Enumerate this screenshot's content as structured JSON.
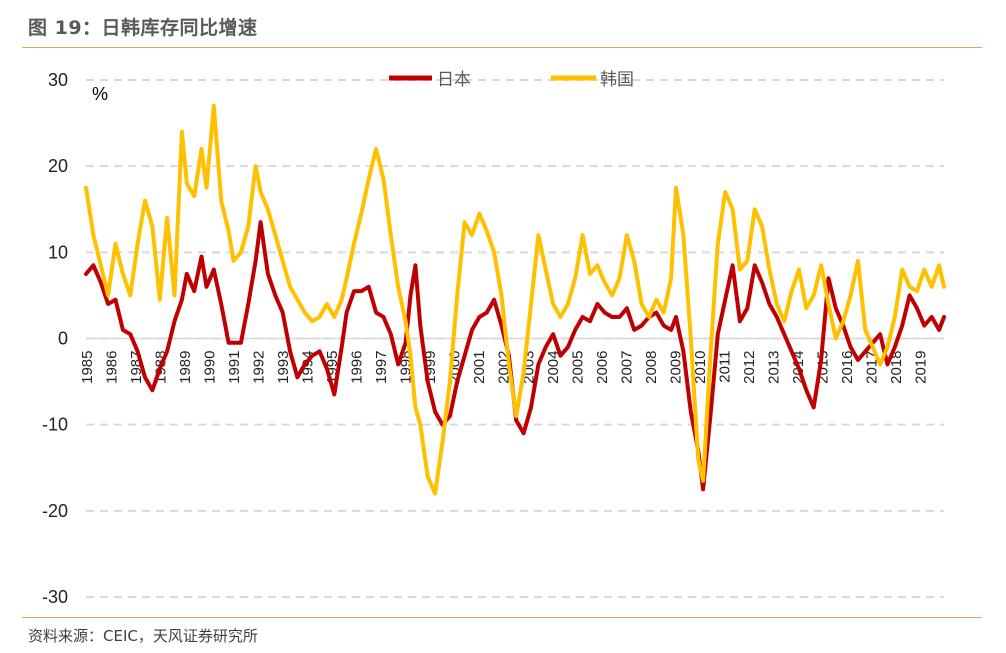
{
  "header": {
    "title": "图 19：日韩库存同比增速"
  },
  "footer": {
    "source": "资料来源：CEIC，天风证券研究所"
  },
  "chart_data": {
    "type": "line",
    "title": "图 19：日韩库存同比增速",
    "ylabel": "%",
    "ylim": [
      -30,
      30
    ],
    "yticks": [
      30,
      20,
      10,
      0,
      -10,
      -20,
      -30
    ],
    "xlim": [
      1985.0,
      2019.9
    ],
    "xtick_labels": [
      "1985",
      "1986",
      "1987",
      "1988",
      "1989",
      "1990",
      "1991",
      "1992",
      "1993",
      "1994",
      "1995",
      "1996",
      "1997",
      "1998",
      "1999",
      "2000",
      "2001",
      "2002",
      "2003",
      "2004",
      "2005",
      "2006",
      "2007",
      "2008",
      "2009",
      "2010",
      "2011",
      "2012",
      "2013",
      "2014",
      "2015",
      "2016",
      "2017",
      "2018",
      "2019"
    ],
    "grid": "horizontal dashed",
    "legend": "top-center",
    "colors": {
      "japan": "#C00000",
      "korea": "#FFC000"
    },
    "series": [
      {
        "name": "日本",
        "color": "#C00000",
        "x": [
          1985.0,
          1985.3,
          1985.6,
          1985.9,
          1986.2,
          1986.5,
          1986.8,
          1987.1,
          1987.4,
          1987.7,
          1988.0,
          1988.3,
          1988.6,
          1988.9,
          1989.1,
          1989.4,
          1989.7,
          1989.9,
          1990.2,
          1990.5,
          1990.8,
          1991.0,
          1991.3,
          1991.6,
          1991.9,
          1992.1,
          1992.4,
          1992.7,
          1993.0,
          1993.3,
          1993.6,
          1993.9,
          1994.2,
          1994.5,
          1994.8,
          1995.1,
          1995.4,
          1995.6,
          1995.9,
          1996.2,
          1996.5,
          1996.8,
          1997.1,
          1997.4,
          1997.7,
          1998.0,
          1998.2,
          1998.4,
          1998.6,
          1998.9,
          1999.2,
          1999.5,
          1999.8,
          2000.1,
          2000.4,
          2000.7,
          2001.0,
          2001.3,
          2001.6,
          2001.9,
          2002.2,
          2002.5,
          2002.8,
          2003.1,
          2003.4,
          2003.7,
          2004.0,
          2004.3,
          2004.6,
          2004.9,
          2005.2,
          2005.5,
          2005.8,
          2006.1,
          2006.4,
          2006.7,
          2007.0,
          2007.3,
          2007.6,
          2007.9,
          2008.2,
          2008.5,
          2008.8,
          2009.0,
          2009.3,
          2009.6,
          2009.9,
          2010.1,
          2010.4,
          2010.7,
          2011.0,
          2011.3,
          2011.6,
          2011.9,
          2012.2,
          2012.5,
          2012.8,
          2013.1,
          2013.4,
          2013.7,
          2014.0,
          2014.3,
          2014.6,
          2014.9,
          2015.2,
          2015.5,
          2015.8,
          2016.1,
          2016.4,
          2016.7,
          2017.0,
          2017.3,
          2017.6,
          2017.9,
          2018.2,
          2018.5,
          2018.8,
          2019.1,
          2019.4,
          2019.7,
          2019.9
        ],
        "y": [
          7.5,
          8.5,
          6.5,
          4.0,
          4.5,
          1.0,
          0.5,
          -1.5,
          -4.5,
          -6.0,
          -3.5,
          -1.5,
          2.0,
          4.5,
          7.5,
          5.5,
          9.5,
          6.0,
          8.0,
          4.0,
          -0.5,
          -0.5,
          -0.5,
          4.0,
          9.0,
          13.5,
          7.5,
          5.0,
          3.0,
          -1.5,
          -4.5,
          -3.0,
          -2.0,
          -1.5,
          -3.5,
          -6.5,
          -1.0,
          3.0,
          5.5,
          5.5,
          6.0,
          3.0,
          2.5,
          0.5,
          -3.0,
          -0.5,
          5.0,
          8.5,
          1.5,
          -5.0,
          -8.5,
          -10.0,
          -9.0,
          -5.0,
          -2.0,
          1.0,
          2.5,
          3.0,
          4.5,
          1.5,
          -2.0,
          -9.5,
          -11.0,
          -8.0,
          -3.0,
          -1.0,
          0.5,
          -2.0,
          -1.0,
          1.0,
          2.5,
          2.0,
          4.0,
          3.0,
          2.5,
          2.5,
          3.5,
          1.0,
          1.5,
          2.5,
          3.0,
          1.5,
          1.0,
          2.5,
          -1.5,
          -8.5,
          -13.0,
          -17.5,
          -9.0,
          0.5,
          4.5,
          8.5,
          2.0,
          3.5,
          8.5,
          6.5,
          4.0,
          2.5,
          0.5,
          -1.5,
          -3.5,
          -6.0,
          -8.0,
          -2.5,
          7.0,
          3.5,
          1.5,
          -1.0,
          -2.5,
          -1.5,
          -0.5,
          0.5,
          -3.0,
          -1.0,
          1.5,
          5.0,
          3.5,
          1.5,
          2.5,
          1.0,
          2.5
        ]
      },
      {
        "name": "韩国",
        "color": "#FFC000",
        "x": [
          1985.0,
          1985.3,
          1985.6,
          1985.9,
          1986.2,
          1986.5,
          1986.8,
          1987.1,
          1987.4,
          1987.7,
          1988.0,
          1988.3,
          1988.6,
          1988.9,
          1989.1,
          1989.4,
          1989.7,
          1989.9,
          1990.2,
          1990.5,
          1990.8,
          1991.0,
          1991.3,
          1991.6,
          1991.9,
          1992.1,
          1992.4,
          1992.7,
          1993.0,
          1993.3,
          1993.6,
          1993.9,
          1994.2,
          1994.5,
          1994.8,
          1995.1,
          1995.4,
          1995.6,
          1995.9,
          1996.2,
          1996.5,
          1996.8,
          1997.1,
          1997.4,
          1997.7,
          1998.0,
          1998.2,
          1998.4,
          1998.6,
          1998.9,
          1999.2,
          1999.5,
          1999.8,
          2000.1,
          2000.4,
          2000.7,
          2001.0,
          2001.3,
          2001.6,
          2001.9,
          2002.2,
          2002.5,
          2002.8,
          2003.1,
          2003.4,
          2003.7,
          2004.0,
          2004.3,
          2004.6,
          2004.9,
          2005.2,
          2005.5,
          2005.8,
          2006.1,
          2006.4,
          2006.7,
          2007.0,
          2007.3,
          2007.6,
          2007.9,
          2008.2,
          2008.5,
          2008.8,
          2009.0,
          2009.3,
          2009.6,
          2009.9,
          2010.1,
          2010.4,
          2010.7,
          2011.0,
          2011.3,
          2011.6,
          2011.9,
          2012.2,
          2012.5,
          2012.8,
          2013.1,
          2013.4,
          2013.7,
          2014.0,
          2014.3,
          2014.6,
          2014.9,
          2015.2,
          2015.5,
          2015.8,
          2016.1,
          2016.4,
          2016.7,
          2017.0,
          2017.3,
          2017.6,
          2017.9,
          2018.2,
          2018.5,
          2018.8,
          2019.1,
          2019.4,
          2019.7,
          2019.9
        ],
        "y": [
          17.5,
          12.0,
          8.5,
          5.0,
          11.0,
          7.5,
          5.0,
          11.0,
          16.0,
          13.0,
          4.5,
          14.0,
          5.0,
          24.0,
          18.0,
          16.5,
          22.0,
          17.5,
          27.0,
          16.0,
          12.5,
          9.0,
          10.0,
          13.0,
          20.0,
          17.0,
          15.0,
          12.0,
          9.0,
          6.0,
          4.5,
          3.0,
          2.0,
          2.5,
          4.0,
          2.5,
          4.5,
          7.0,
          11.0,
          14.5,
          18.5,
          22.0,
          18.5,
          12.0,
          6.0,
          2.0,
          -2.0,
          -8.0,
          -10.0,
          -16.0,
          -18.0,
          -12.0,
          -5.0,
          5.0,
          13.5,
          12.0,
          14.5,
          12.5,
          10.0,
          5.0,
          -3.0,
          -9.0,
          -4.0,
          4.0,
          12.0,
          8.0,
          4.0,
          2.5,
          4.0,
          7.0,
          12.0,
          7.5,
          8.5,
          6.5,
          5.0,
          7.0,
          12.0,
          9.0,
          4.0,
          2.5,
          4.5,
          3.0,
          7.0,
          17.5,
          12.0,
          0.0,
          -14.0,
          -16.5,
          -2.0,
          11.0,
          17.0,
          15.0,
          8.0,
          9.0,
          15.0,
          13.0,
          8.0,
          4.0,
          2.0,
          5.5,
          8.0,
          3.5,
          5.0,
          8.5,
          4.0,
          0.0,
          2.0,
          5.0,
          9.0,
          1.0,
          -1.0,
          -3.0,
          -1.0,
          2.5,
          8.0,
          6.0,
          5.5,
          8.0,
          6.0,
          8.5,
          6.0
        ]
      }
    ]
  }
}
